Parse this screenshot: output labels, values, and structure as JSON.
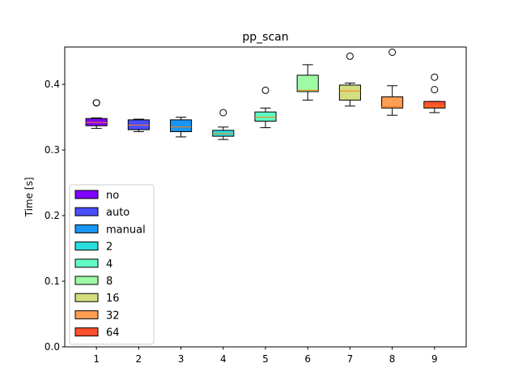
{
  "chart_data": {
    "type": "boxplot",
    "title": "pp_scan",
    "xlabel": "",
    "ylabel": "Time [s]",
    "ylim": [
      0.0,
      0.457
    ],
    "yticks": [
      0.0,
      0.1,
      0.2,
      0.3,
      0.4
    ],
    "ytick_labels": [
      "0.0",
      "0.1",
      "0.2",
      "0.3",
      "0.4"
    ],
    "categories": [
      "1",
      "2",
      "3",
      "4",
      "5",
      "6",
      "7",
      "8",
      "9"
    ],
    "grid": false,
    "legend_position": "lower-left",
    "series": [
      {
        "name": "no",
        "color": "#8000ff",
        "whisker_low": 0.333,
        "q1": 0.337,
        "median": 0.342,
        "q3": 0.348,
        "whisker_high": 0.349,
        "outliers": [
          0.372,
          0.372
        ]
      },
      {
        "name": "auto",
        "color": "#4a4ffa",
        "whisker_low": 0.328,
        "q1": 0.331,
        "median": 0.338,
        "q3": 0.346,
        "whisker_high": 0.347,
        "outliers": []
      },
      {
        "name": "manual",
        "color": "#1996f3",
        "whisker_low": 0.32,
        "q1": 0.328,
        "median": 0.335,
        "q3": 0.346,
        "whisker_high": 0.35,
        "outliers": []
      },
      {
        "name": "2",
        "color": "#2adddd",
        "whisker_low": 0.316,
        "q1": 0.321,
        "median": 0.325,
        "q3": 0.33,
        "whisker_high": 0.335,
        "outliers": [
          0.357
        ]
      },
      {
        "name": "4",
        "color": "#62fbc4",
        "whisker_low": 0.334,
        "q1": 0.344,
        "median": 0.35,
        "q3": 0.358,
        "whisker_high": 0.364,
        "outliers": [
          0.391
        ]
      },
      {
        "name": "8",
        "color": "#9cfba4",
        "whisker_low": 0.376,
        "q1": 0.389,
        "median": 0.391,
        "q3": 0.414,
        "whisker_high": 0.43,
        "outliers": []
      },
      {
        "name": "16",
        "color": "#d4dd80",
        "whisker_low": 0.367,
        "q1": 0.376,
        "median": 0.39,
        "q3": 0.399,
        "whisker_high": 0.402,
        "outliers": [
          0.443
        ]
      },
      {
        "name": "32",
        "color": "#ff9d55",
        "whisker_low": 0.353,
        "q1": 0.364,
        "median": 0.366,
        "q3": 0.381,
        "whisker_high": 0.398,
        "outliers": [
          0.449
        ]
      },
      {
        "name": "64",
        "color": "#ff4f2e",
        "whisker_low": 0.357,
        "q1": 0.364,
        "median": 0.367,
        "q3": 0.374,
        "whisker_high": 0.374,
        "outliers": [
          0.392,
          0.411
        ]
      }
    ]
  }
}
